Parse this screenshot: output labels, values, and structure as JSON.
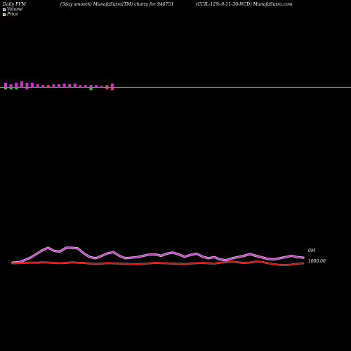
{
  "header": {
    "left": "Daily PVM",
    "middle": "(5day smooth) MunafaSutra(TM) charts for 940751",
    "right": "(CCIL-12%-9-11-30-NCD) MunafaSutra.com"
  },
  "legend": {
    "volume_label": "Volume",
    "price_label": "Price"
  },
  "colors": {
    "background": "#000000",
    "volume_line": "#cc33cc",
    "volume_glow": "#ffffff",
    "price_line": "#ff0000",
    "price_glow": "#aaaaaa",
    "bar_up": "#cc33cc",
    "bar_down": "#ff3366",
    "bar_neutral": "#33cc33",
    "axis_line": "#bbbbbb"
  },
  "chart_data": {
    "type": "line",
    "title": "(5day smooth) MunafaSutra(TM) charts for 940751",
    "x": [
      1,
      2,
      3,
      4,
      5,
      6,
      7,
      8,
      9,
      10,
      11,
      12,
      13,
      14,
      15,
      16,
      17,
      18,
      19,
      20,
      21,
      22,
      23,
      24,
      25,
      26,
      27,
      28,
      29,
      30,
      31,
      32,
      33,
      34,
      35,
      36,
      37,
      38,
      39,
      40,
      41,
      42,
      43,
      44,
      45,
      46,
      47,
      48,
      49,
      50
    ],
    "series": [
      {
        "name": "Volume",
        "values": [
          0.5,
          0.8,
          2.5,
          4.5,
          7.5,
          10.5,
          12.5,
          10,
          9.5,
          12.5,
          12.5,
          12,
          8,
          5,
          4,
          6,
          8,
          9,
          6,
          4,
          4.5,
          5,
          6,
          7,
          7.2,
          6,
          7.8,
          8.6,
          7.2,
          5.2,
          6.8,
          7.8,
          5.4,
          4,
          5,
          3,
          2.5,
          4,
          5,
          6,
          7.5,
          6,
          4.8,
          3.5,
          3,
          4,
          5,
          6,
          5,
          4.5
        ],
        "y_axis_label": "0M"
      },
      {
        "name": "Price",
        "values": [
          1000,
          1000.1,
          1000.2,
          1000.4,
          1000.3,
          1000.5,
          1000.4,
          1000.2,
          1000.1,
          1000.2,
          1000.5,
          1000.3,
          1000.2,
          999.9,
          999.8,
          999.9,
          1000.1,
          1000,
          999.9,
          999.8,
          999.7,
          999.6,
          999.8,
          1000,
          1000.2,
          1000.1,
          1000,
          999.9,
          999.8,
          999.7,
          999.9,
          1000.1,
          1000.2,
          1000,
          999.9,
          1000.3,
          1000.6,
          1000.8,
          1000.5,
          1000.2,
          1000.4,
          1000.9,
          1000.7,
          1000.1,
          999.6,
          999.3,
          999.2,
          999.4,
          999.8,
          1000
        ],
        "y_axis_label": "1000.00"
      }
    ],
    "pvm_bars": [
      {
        "value": 3,
        "dir": "up"
      },
      {
        "value": 2,
        "dir": "up"
      },
      {
        "value": 3,
        "dir": "up"
      },
      {
        "value": 4,
        "dir": "up"
      },
      {
        "value": 3,
        "dir": "up"
      },
      {
        "value": 3,
        "dir": "up"
      },
      {
        "value": 2,
        "dir": "up"
      },
      {
        "value": 1.5,
        "dir": "up"
      },
      {
        "value": 1.5,
        "dir": "down"
      },
      {
        "value": 2,
        "dir": "up"
      },
      {
        "value": 2,
        "dir": "up"
      },
      {
        "value": 2.5,
        "dir": "up"
      },
      {
        "value": 2,
        "dir": "up"
      },
      {
        "value": 2.5,
        "dir": "up"
      },
      {
        "value": 1.5,
        "dir": "up"
      },
      {
        "value": 1.5,
        "dir": "up"
      },
      {
        "value": 1.5,
        "dir": "up"
      },
      {
        "value": 1.5,
        "dir": "up"
      },
      {
        "value": 1,
        "dir": "up"
      },
      {
        "value": 1.5,
        "dir": "down"
      },
      {
        "value": 2.5,
        "dir": "up"
      }
    ],
    "pvm_below": [
      {
        "value": 1,
        "dir": "neutral"
      },
      {
        "value": 1,
        "dir": "neutral"
      },
      {
        "value": 1,
        "dir": "neutral"
      },
      {
        "value": 0,
        "dir": "none"
      },
      {
        "value": 1,
        "dir": "up"
      },
      {
        "value": 0,
        "dir": "none"
      },
      {
        "value": 0,
        "dir": "none"
      },
      {
        "value": 0,
        "dir": "none"
      },
      {
        "value": 0,
        "dir": "none"
      },
      {
        "value": 0,
        "dir": "none"
      },
      {
        "value": 0,
        "dir": "none"
      },
      {
        "value": 0,
        "dir": "none"
      },
      {
        "value": 0,
        "dir": "none"
      },
      {
        "value": 0,
        "dir": "none"
      },
      {
        "value": 0,
        "dir": "none"
      },
      {
        "value": 0,
        "dir": "none"
      },
      {
        "value": 1.5,
        "dir": "neutral"
      },
      {
        "value": 0,
        "dir": "none"
      },
      {
        "value": 0,
        "dir": "none"
      },
      {
        "value": 1,
        "dir": "down"
      },
      {
        "value": 1.5,
        "dir": "down"
      }
    ],
    "grid": false,
    "legend_position": "top-left"
  }
}
